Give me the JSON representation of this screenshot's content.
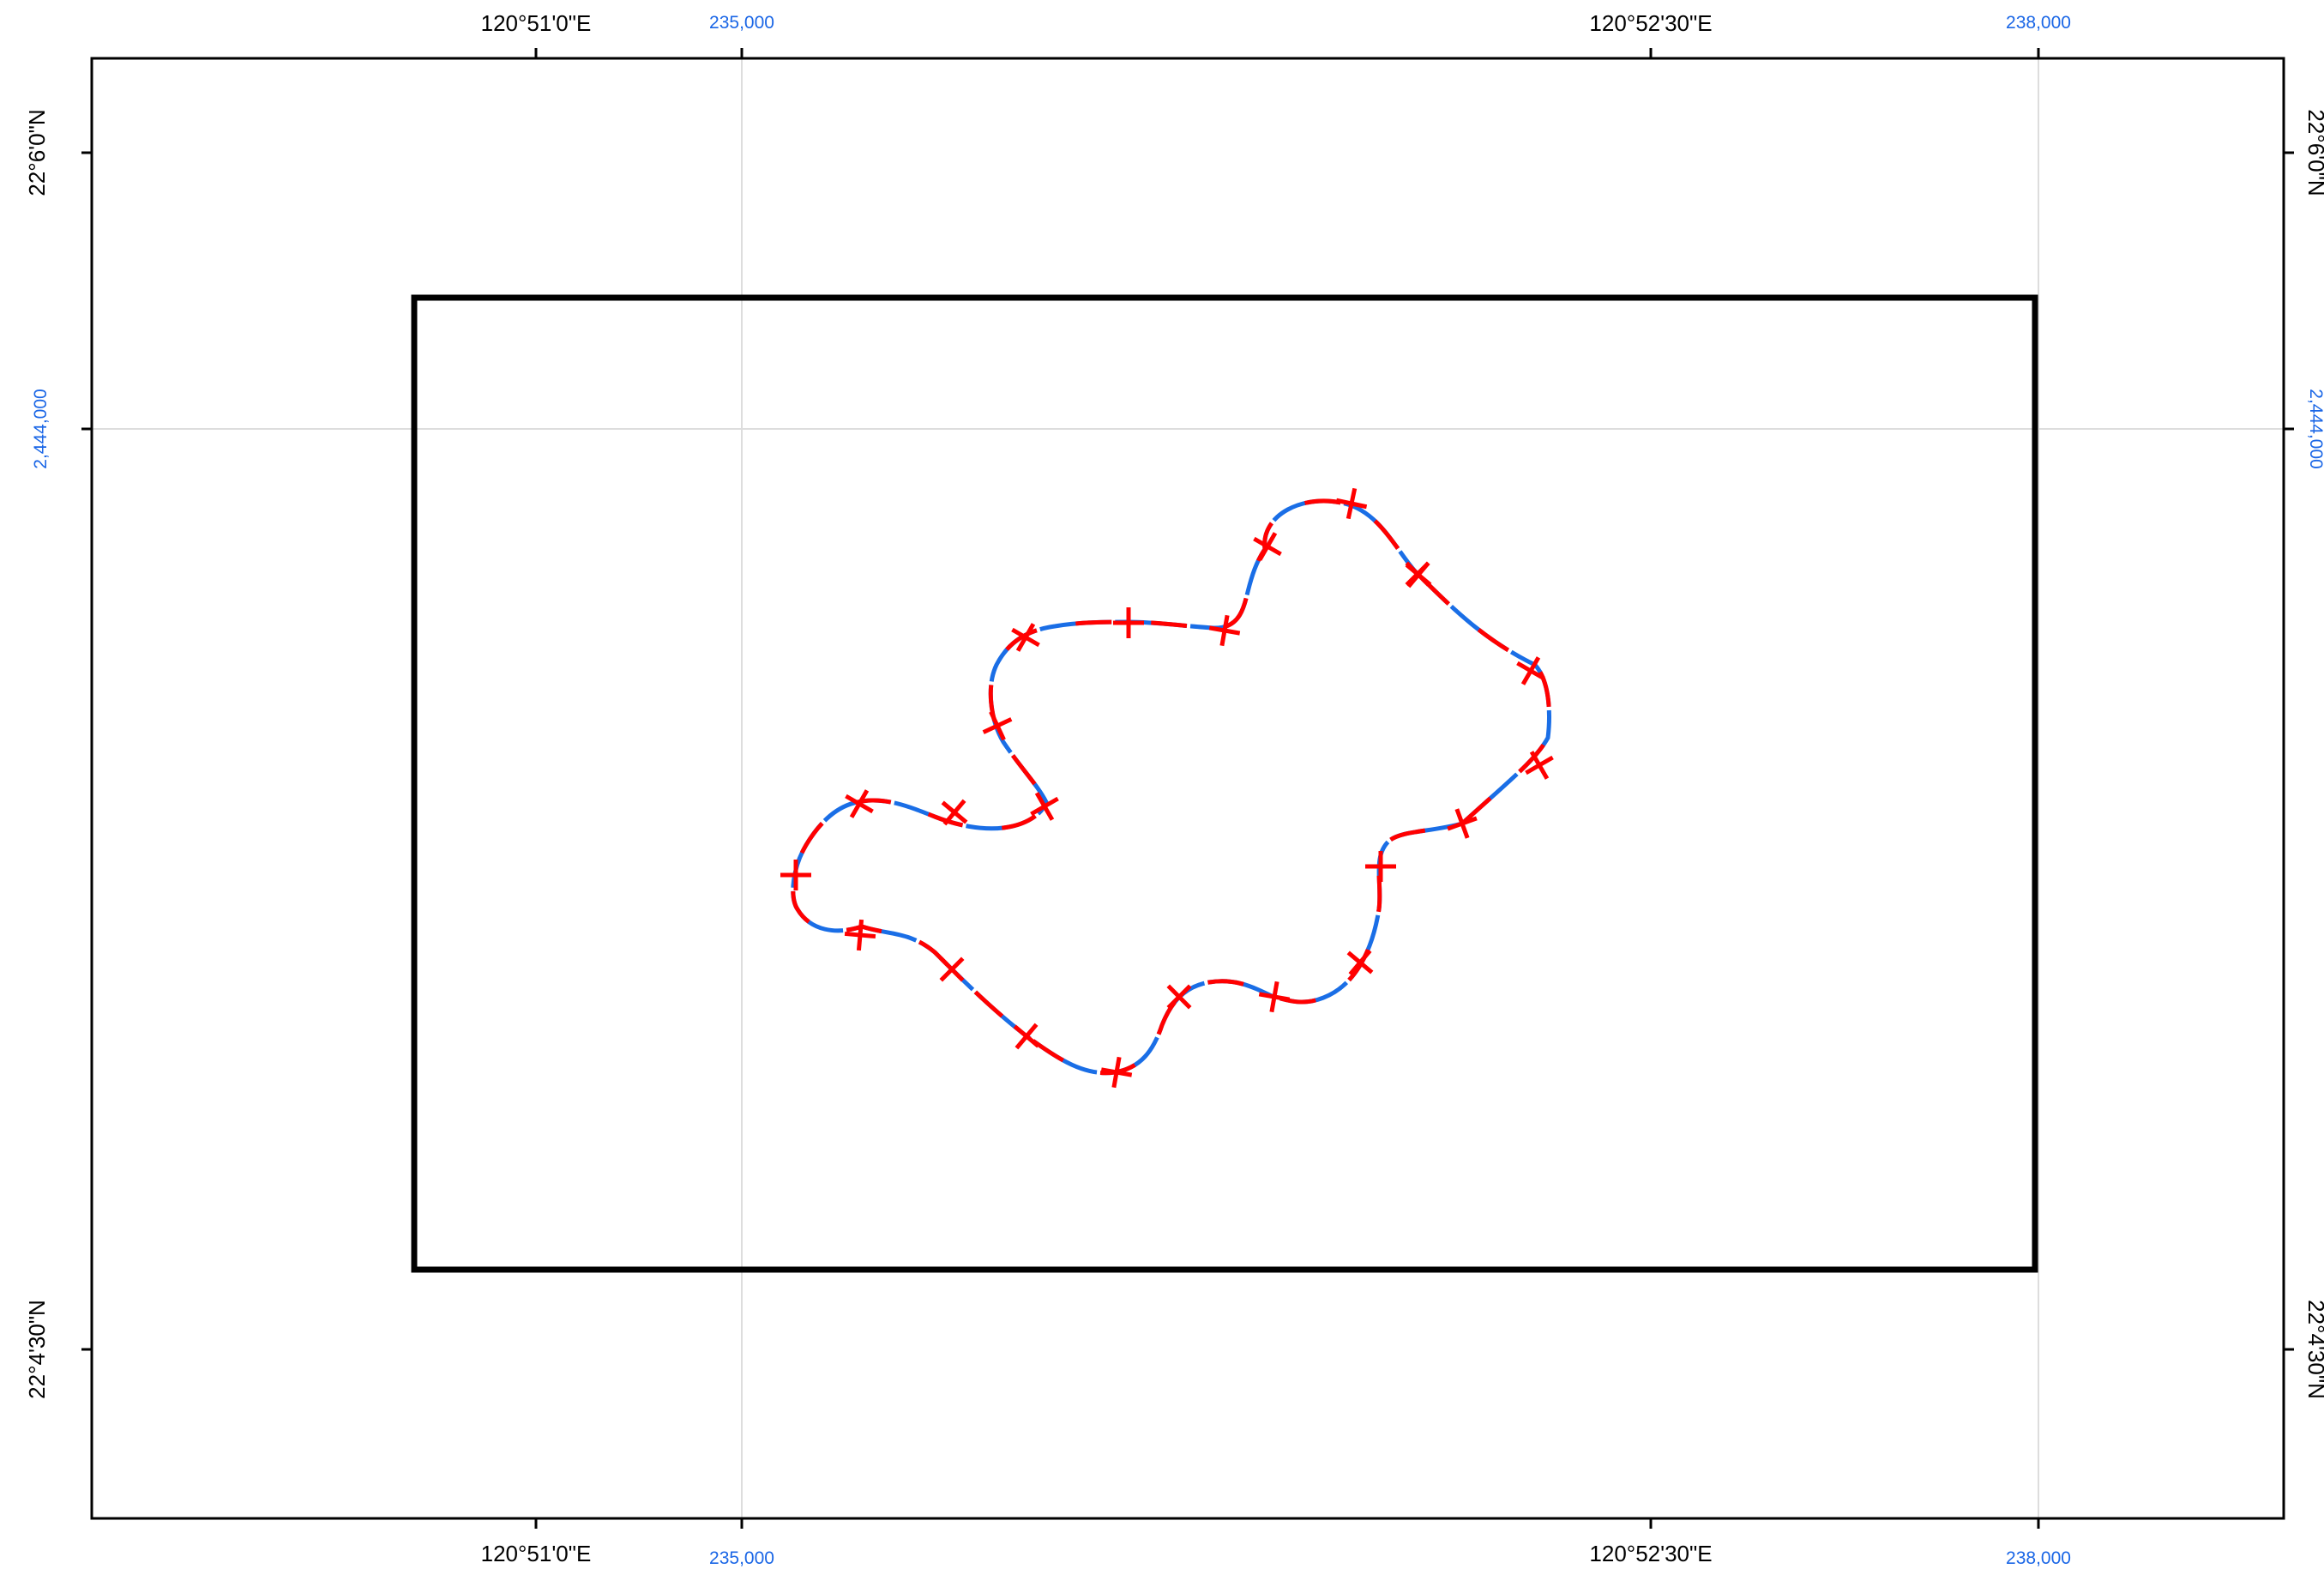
{
  "map": {
    "graticule_labels": {
      "lon_left": "120°51'0\"E",
      "lon_right": "120°52'30\"E",
      "lat_top": "22°6'0\"N",
      "lat_bottom": "22°4'30\"N"
    },
    "grid_labels": {
      "easting_left": "235,000",
      "easting_right": "238,000",
      "northing": "2,444,000"
    },
    "colors": {
      "frame": "#000000",
      "grid_lines": "#dddddd",
      "grid_label": "#1a66e6",
      "boundary_blue": "#1a6ee6",
      "boundary_red": "#ff0000",
      "vertex_markers": "#ff0000"
    },
    "features": {
      "extent_rectangle": "black outlined rectangle",
      "boundary_polygon": "closed curve with alternating blue and red dashes",
      "vertex_marker_symbol": "red cross",
      "vertex_marker_count": 23
    }
  }
}
